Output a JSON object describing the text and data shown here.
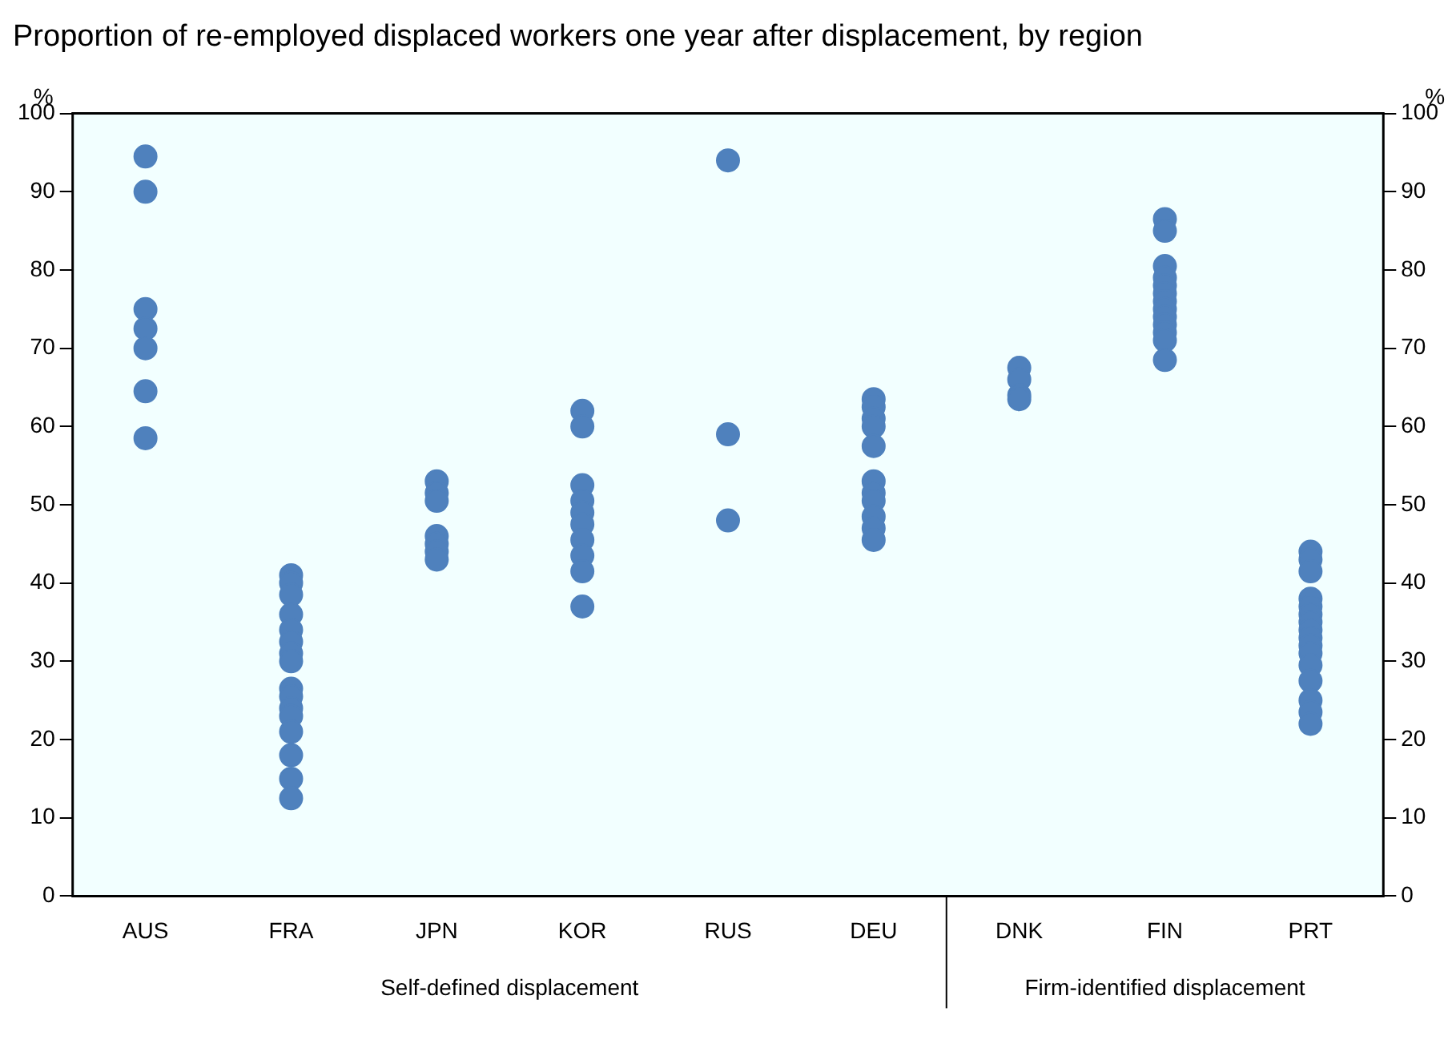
{
  "chart_data": {
    "type": "scatter",
    "title": "Proportion of re-employed displaced workers one year after displacement, by region",
    "ylabel": "%",
    "y2label": "%",
    "categories": [
      "AUS",
      "FRA",
      "JPN",
      "KOR",
      "RUS",
      "DEU",
      "DNK",
      "FIN",
      "PRT"
    ],
    "series": [
      {
        "color": "#4f81bd",
        "x": [
          "AUS",
          "AUS",
          "AUS",
          "AUS",
          "AUS",
          "AUS",
          "AUS",
          "FRA",
          "FRA",
          "FRA",
          "FRA",
          "FRA",
          "FRA",
          "FRA",
          "FRA",
          "FRA",
          "FRA",
          "FRA",
          "FRA",
          "FRA",
          "FRA",
          "FRA",
          "FRA",
          "JPN",
          "JPN",
          "JPN",
          "JPN",
          "JPN",
          "JPN",
          "JPN",
          "KOR",
          "KOR",
          "KOR",
          "KOR",
          "KOR",
          "KOR",
          "KOR",
          "KOR",
          "KOR",
          "KOR",
          "RUS",
          "RUS",
          "RUS",
          "DEU",
          "DEU",
          "DEU",
          "DEU",
          "DEU",
          "DEU",
          "DEU",
          "DEU",
          "DEU",
          "DEU",
          "DEU",
          "DNK",
          "DNK",
          "DNK",
          "DNK",
          "FIN",
          "FIN",
          "FIN",
          "FIN",
          "FIN",
          "FIN",
          "FIN",
          "FIN",
          "FIN",
          "FIN",
          "FIN",
          "FIN",
          "FIN",
          "PRT",
          "PRT",
          "PRT",
          "PRT",
          "PRT",
          "PRT",
          "PRT",
          "PRT",
          "PRT",
          "PRT",
          "PRT",
          "PRT",
          "PRT",
          "PRT",
          "PRT",
          "PRT"
        ],
        "values": [
          94.5,
          90,
          75,
          72.5,
          70,
          64.5,
          58.5,
          41,
          40,
          38.5,
          36,
          34,
          32.5,
          31,
          30,
          26.5,
          25.5,
          24,
          23,
          21,
          18,
          15,
          12.5,
          53,
          51.5,
          50.5,
          46,
          45,
          44,
          43,
          62,
          60,
          52.5,
          50.5,
          49,
          47.5,
          45.5,
          43.5,
          41.5,
          37,
          94,
          59,
          48,
          63.5,
          62.5,
          61,
          60,
          57.5,
          53,
          51.5,
          50.5,
          48.5,
          47,
          45.5,
          67.5,
          66,
          64,
          63.5,
          86.5,
          85,
          80.5,
          79,
          78,
          77,
          76,
          75,
          74,
          73,
          72,
          71,
          68.5,
          44,
          43,
          41.5,
          38,
          37,
          36,
          35,
          34,
          33,
          32,
          31,
          29.5,
          27.5,
          25,
          23.5,
          22
        ]
      }
    ],
    "ylim": [
      0,
      100
    ],
    "yticks": [
      0,
      10,
      20,
      30,
      40,
      50,
      60,
      70,
      80,
      90,
      100
    ],
    "y2lim": [
      0,
      100
    ],
    "y2ticks": [
      0,
      10,
      20,
      30,
      40,
      50,
      60,
      70,
      80,
      90,
      100
    ],
    "annotations": [
      "Self-defined displacement",
      "Firm-identified displacement"
    ],
    "marker": "circle",
    "grid": false,
    "legend": false
  }
}
